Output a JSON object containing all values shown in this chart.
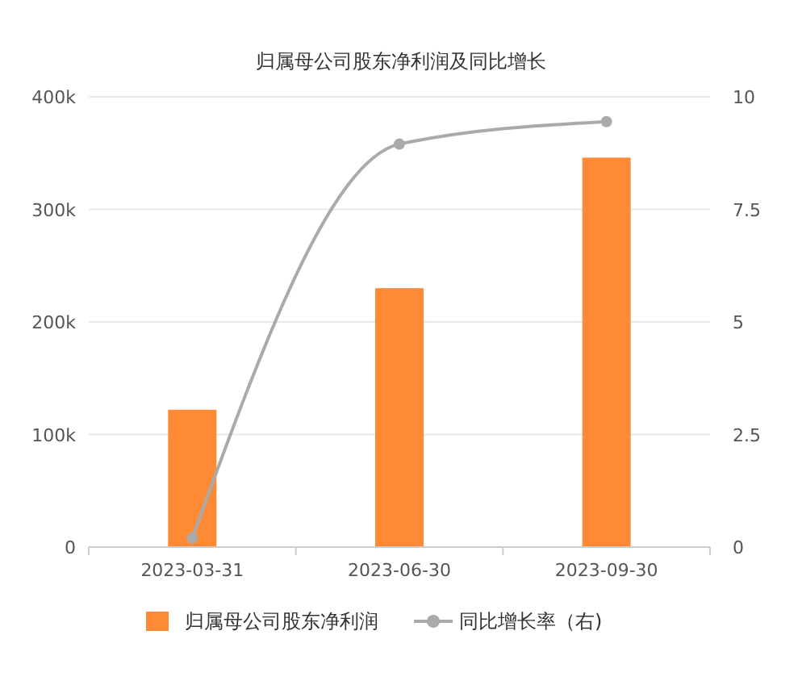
{
  "chart_data": {
    "type": "bar",
    "title": "归属母公司股东净利润及同比增长",
    "categories": [
      "2023-03-31",
      "2023-06-30",
      "2023-09-30"
    ],
    "series": [
      {
        "name": "归属母公司股东净利润",
        "color": "#ff8a36",
        "values": [
          122000,
          230000,
          346000
        ]
      },
      {
        "name": "同比增长率（右)",
        "type": "line",
        "axis": "y2",
        "color": "#aaaaaa",
        "values": [
          0.2,
          8.95,
          9.45
        ]
      }
    ],
    "ylim": [
      0,
      400000
    ],
    "yticks": [
      0,
      {
        "value": 100000,
        "label": "100k"
      },
      {
        "value": 200000,
        "label": "200k"
      },
      {
        "value": 300000,
        "label": "300k"
      },
      {
        "value": 400000,
        "label": "400k"
      }
    ],
    "y2lim": [
      0,
      10
    ],
    "y2ticks": [
      0,
      2.5,
      5,
      7.5,
      10
    ],
    "grid": "y",
    "legend": "bottom",
    "marker": "circle"
  }
}
